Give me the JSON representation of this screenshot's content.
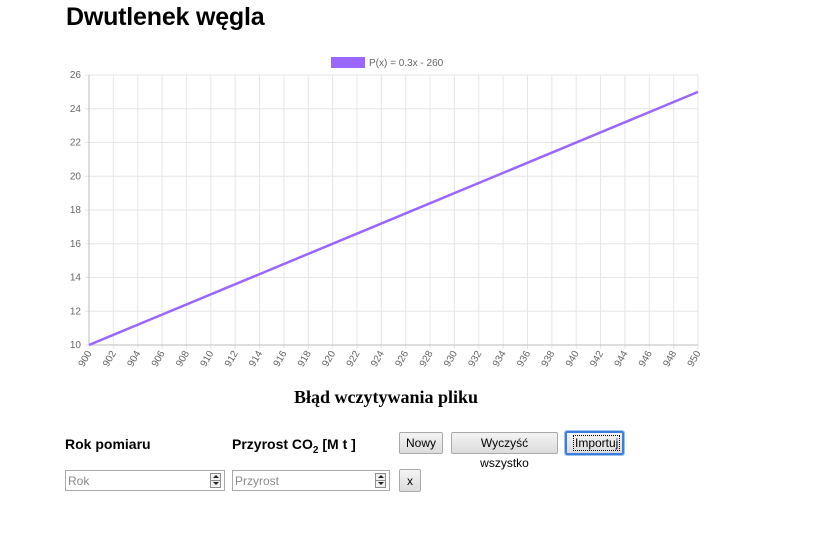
{
  "page": {
    "title": "Dwutlenek węgla",
    "error_message": "Błąd wczytywania pliku"
  },
  "chart_data": {
    "type": "line",
    "title": "",
    "xlabel": "",
    "ylabel": "",
    "xlim": [
      900,
      950
    ],
    "ylim": [
      10,
      26
    ],
    "x_ticks": [
      900,
      902,
      904,
      906,
      908,
      910,
      912,
      914,
      916,
      918,
      920,
      922,
      924,
      926,
      928,
      930,
      932,
      934,
      936,
      938,
      940,
      942,
      944,
      946,
      948,
      950
    ],
    "y_ticks": [
      10,
      12,
      14,
      16,
      18,
      20,
      22,
      24,
      26
    ],
    "series": [
      {
        "name": "P(x) = 0.3x - 260",
        "color": "#9966ff",
        "x": [
          900,
          950
        ],
        "y": [
          10,
          25
        ]
      }
    ],
    "legend_position": "top-center",
    "grid": true
  },
  "form": {
    "year_label": "Rok pomiaru",
    "increase_label": "Przyrost CO",
    "increase_sub": "2",
    "increase_unit": " [M t ]",
    "new_button": "Nowy",
    "clear_all_button": "Wyczyść wszystko",
    "import_button": "Importuj",
    "year_placeholder": "Rok",
    "year_value": "",
    "increase_placeholder": "Przyrost",
    "increase_value": "",
    "remove_button": "x"
  },
  "icons": {
    "spinner_up": "spinner-up-icon",
    "spinner_down": "spinner-down-icon"
  }
}
